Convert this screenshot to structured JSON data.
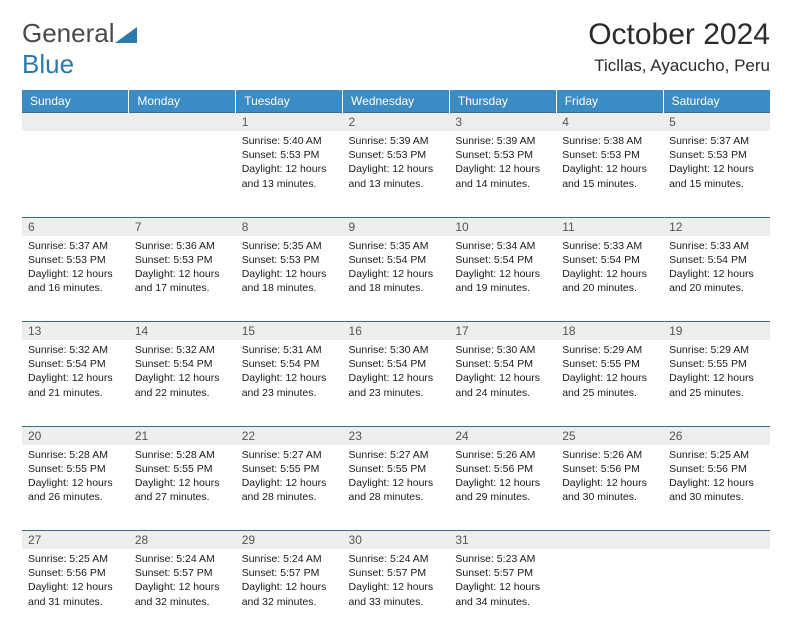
{
  "logo": {
    "text1": "General",
    "text2": "Blue"
  },
  "title": "October 2024",
  "location": "Ticllas, Ayacucho, Peru",
  "colors": {
    "header_bg": "#3b8bc4",
    "header_fg": "#ffffff",
    "daynum_bg": "#eeeeee",
    "rule": "#3b6a8c",
    "logo_gray": "#4a4a4a",
    "logo_blue": "#2a7ab0"
  },
  "weekdays": [
    "Sunday",
    "Monday",
    "Tuesday",
    "Wednesday",
    "Thursday",
    "Friday",
    "Saturday"
  ],
  "weeks": [
    [
      null,
      null,
      {
        "n": "1",
        "sr": "5:40 AM",
        "ss": "5:53 PM",
        "dl": "12 hours and 13 minutes."
      },
      {
        "n": "2",
        "sr": "5:39 AM",
        "ss": "5:53 PM",
        "dl": "12 hours and 13 minutes."
      },
      {
        "n": "3",
        "sr": "5:39 AM",
        "ss": "5:53 PM",
        "dl": "12 hours and 14 minutes."
      },
      {
        "n": "4",
        "sr": "5:38 AM",
        "ss": "5:53 PM",
        "dl": "12 hours and 15 minutes."
      },
      {
        "n": "5",
        "sr": "5:37 AM",
        "ss": "5:53 PM",
        "dl": "12 hours and 15 minutes."
      }
    ],
    [
      {
        "n": "6",
        "sr": "5:37 AM",
        "ss": "5:53 PM",
        "dl": "12 hours and 16 minutes."
      },
      {
        "n": "7",
        "sr": "5:36 AM",
        "ss": "5:53 PM",
        "dl": "12 hours and 17 minutes."
      },
      {
        "n": "8",
        "sr": "5:35 AM",
        "ss": "5:53 PM",
        "dl": "12 hours and 18 minutes."
      },
      {
        "n": "9",
        "sr": "5:35 AM",
        "ss": "5:54 PM",
        "dl": "12 hours and 18 minutes."
      },
      {
        "n": "10",
        "sr": "5:34 AM",
        "ss": "5:54 PM",
        "dl": "12 hours and 19 minutes."
      },
      {
        "n": "11",
        "sr": "5:33 AM",
        "ss": "5:54 PM",
        "dl": "12 hours and 20 minutes."
      },
      {
        "n": "12",
        "sr": "5:33 AM",
        "ss": "5:54 PM",
        "dl": "12 hours and 20 minutes."
      }
    ],
    [
      {
        "n": "13",
        "sr": "5:32 AM",
        "ss": "5:54 PM",
        "dl": "12 hours and 21 minutes."
      },
      {
        "n": "14",
        "sr": "5:32 AM",
        "ss": "5:54 PM",
        "dl": "12 hours and 22 minutes."
      },
      {
        "n": "15",
        "sr": "5:31 AM",
        "ss": "5:54 PM",
        "dl": "12 hours and 23 minutes."
      },
      {
        "n": "16",
        "sr": "5:30 AM",
        "ss": "5:54 PM",
        "dl": "12 hours and 23 minutes."
      },
      {
        "n": "17",
        "sr": "5:30 AM",
        "ss": "5:54 PM",
        "dl": "12 hours and 24 minutes."
      },
      {
        "n": "18",
        "sr": "5:29 AM",
        "ss": "5:55 PM",
        "dl": "12 hours and 25 minutes."
      },
      {
        "n": "19",
        "sr": "5:29 AM",
        "ss": "5:55 PM",
        "dl": "12 hours and 25 minutes."
      }
    ],
    [
      {
        "n": "20",
        "sr": "5:28 AM",
        "ss": "5:55 PM",
        "dl": "12 hours and 26 minutes."
      },
      {
        "n": "21",
        "sr": "5:28 AM",
        "ss": "5:55 PM",
        "dl": "12 hours and 27 minutes."
      },
      {
        "n": "22",
        "sr": "5:27 AM",
        "ss": "5:55 PM",
        "dl": "12 hours and 28 minutes."
      },
      {
        "n": "23",
        "sr": "5:27 AM",
        "ss": "5:55 PM",
        "dl": "12 hours and 28 minutes."
      },
      {
        "n": "24",
        "sr": "5:26 AM",
        "ss": "5:56 PM",
        "dl": "12 hours and 29 minutes."
      },
      {
        "n": "25",
        "sr": "5:26 AM",
        "ss": "5:56 PM",
        "dl": "12 hours and 30 minutes."
      },
      {
        "n": "26",
        "sr": "5:25 AM",
        "ss": "5:56 PM",
        "dl": "12 hours and 30 minutes."
      }
    ],
    [
      {
        "n": "27",
        "sr": "5:25 AM",
        "ss": "5:56 PM",
        "dl": "12 hours and 31 minutes."
      },
      {
        "n": "28",
        "sr": "5:24 AM",
        "ss": "5:57 PM",
        "dl": "12 hours and 32 minutes."
      },
      {
        "n": "29",
        "sr": "5:24 AM",
        "ss": "5:57 PM",
        "dl": "12 hours and 32 minutes."
      },
      {
        "n": "30",
        "sr": "5:24 AM",
        "ss": "5:57 PM",
        "dl": "12 hours and 33 minutes."
      },
      {
        "n": "31",
        "sr": "5:23 AM",
        "ss": "5:57 PM",
        "dl": "12 hours and 34 minutes."
      },
      null,
      null
    ]
  ],
  "labels": {
    "sunrise": "Sunrise:",
    "sunset": "Sunset:",
    "daylight": "Daylight:"
  }
}
